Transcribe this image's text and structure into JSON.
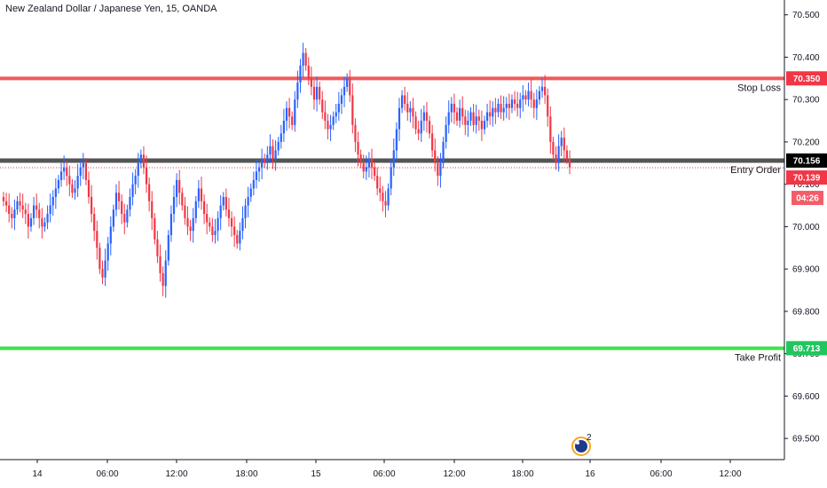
{
  "header": {
    "title": "New Zealand Dollar / Japanese Yen, 15, OANDA"
  },
  "colors": {
    "up": "#2962ff",
    "down": "#f23645",
    "stop": "#f05a5a",
    "target": "#3fe04f",
    "entry": "#555555",
    "current": "#f23645",
    "axis_line": "#131722",
    "badge_stop": "#f23645",
    "badge_entry": "#000000",
    "badge_target": "#22c55e",
    "badge_timer": "#f35d68",
    "event_icon": "#1e3a8a"
  },
  "chart_data": {
    "type": "candlestick",
    "title": "New Zealand Dollar / Japanese Yen, 15, OANDA",
    "yticks": [
      "70.500",
      "70.400",
      "70.300",
      "70.200",
      "70.100",
      "70.000",
      "69.900",
      "69.800",
      "69.700",
      "69.600",
      "69.500"
    ],
    "xticks": [
      "14",
      "06:00",
      "12:00",
      "18:00",
      "15",
      "06:00",
      "12:00",
      "18:00",
      "16",
      "06:00",
      "12:00"
    ],
    "ylim": [
      69.45,
      70.535
    ],
    "levels": [
      {
        "name": "Stop Loss",
        "price": 70.35,
        "badge": "70.350",
        "style": "stop"
      },
      {
        "name": "Entry Order",
        "price": 70.156,
        "badge": "70.156",
        "style": "entry"
      },
      {
        "name": "Take Profit",
        "price": 69.713,
        "badge": "69.713",
        "style": "target"
      }
    ],
    "last_price": {
      "value": 70.139,
      "badge": "70.139",
      "countdown": "04:26"
    },
    "event_marker": {
      "count": "2"
    },
    "series": [
      {
        "close": [
          70.06,
          70.05,
          70.03,
          70.02,
          70.04,
          70.06,
          70.05,
          70.04,
          70.03,
          70.0,
          70.02,
          70.05,
          70.04,
          70.02,
          70.0,
          70.01,
          70.03,
          70.05,
          70.07,
          70.09,
          70.11,
          70.13,
          70.14,
          70.12,
          70.1,
          70.08,
          70.09,
          70.12,
          70.14,
          70.15,
          70.11,
          70.07,
          70.03,
          69.99,
          69.95,
          69.9,
          69.88,
          69.92,
          69.96,
          70.0,
          70.04,
          70.08,
          70.06,
          70.03,
          70.01,
          70.04,
          70.07,
          70.1,
          70.12,
          70.15,
          70.17,
          70.14,
          70.1,
          70.06,
          70.02,
          69.97,
          69.93,
          69.89,
          69.86,
          69.92,
          69.98,
          70.03,
          70.07,
          70.11,
          70.08,
          70.05,
          70.02,
          70.0,
          69.99,
          70.02,
          70.06,
          70.09,
          70.06,
          70.03,
          70.01,
          70.0,
          69.98,
          69.99,
          70.02,
          70.05,
          70.07,
          70.04,
          70.02,
          70.0,
          69.98,
          69.96,
          69.99,
          70.02,
          70.05,
          70.07,
          70.09,
          70.11,
          70.13,
          70.14,
          70.16,
          70.15,
          70.17,
          70.19,
          70.16,
          70.18,
          70.2,
          70.22,
          70.25,
          70.28,
          70.26,
          70.24,
          70.3,
          70.34,
          70.38,
          70.41,
          70.38,
          70.35,
          70.33,
          70.3,
          70.33,
          70.3,
          70.27,
          70.25,
          70.23,
          70.24,
          70.26,
          70.27,
          70.29,
          70.31,
          70.33,
          70.35,
          70.31,
          70.24,
          70.2,
          70.17,
          70.15,
          70.13,
          70.14,
          70.16,
          70.14,
          70.12,
          70.09,
          70.08,
          70.06,
          70.05,
          70.09,
          70.14,
          70.18,
          70.23,
          70.28,
          70.31,
          70.29,
          70.27,
          70.28,
          70.26,
          70.23,
          70.22,
          70.25,
          70.27,
          70.25,
          70.22,
          70.18,
          70.15,
          70.12,
          70.15,
          70.2,
          70.24,
          70.27,
          70.29,
          70.27,
          70.25,
          70.28,
          70.26,
          70.24,
          70.25,
          70.27,
          70.24,
          70.26,
          70.25,
          70.23,
          70.25,
          70.27,
          70.26,
          70.28,
          70.27,
          70.29,
          70.27,
          70.28,
          70.29,
          70.28,
          70.3,
          70.29,
          70.28,
          70.3,
          70.31,
          70.3,
          70.32,
          70.3,
          70.28,
          70.3,
          70.32,
          70.33,
          70.31,
          70.26,
          70.2,
          70.17,
          70.15,
          70.19,
          70.21,
          70.18,
          70.16,
          70.14
        ],
        "open": [
          70.07,
          70.06,
          70.05,
          70.03,
          70.02,
          70.04,
          70.06,
          70.05,
          70.04,
          70.03,
          70.0,
          70.02,
          70.05,
          70.04,
          70.02,
          70.0,
          70.01,
          70.03,
          70.05,
          70.07,
          70.09,
          70.11,
          70.13,
          70.14,
          70.12,
          70.1,
          70.08,
          70.09,
          70.12,
          70.14,
          70.15,
          70.11,
          70.07,
          70.03,
          69.99,
          69.95,
          69.9,
          69.88,
          69.92,
          69.96,
          70.0,
          70.04,
          70.08,
          70.06,
          70.03,
          70.01,
          70.04,
          70.07,
          70.1,
          70.12,
          70.15,
          70.17,
          70.14,
          70.1,
          70.06,
          70.02,
          69.97,
          69.93,
          69.89,
          69.86,
          69.92,
          69.98,
          70.03,
          70.07,
          70.11,
          70.08,
          70.05,
          70.02,
          70.0,
          69.99,
          70.02,
          70.06,
          70.09,
          70.06,
          70.03,
          70.01,
          70.0,
          69.98,
          69.99,
          70.02,
          70.05,
          70.07,
          70.04,
          70.02,
          70.0,
          69.98,
          69.96,
          69.99,
          70.02,
          70.05,
          70.07,
          70.09,
          70.11,
          70.13,
          70.14,
          70.16,
          70.15,
          70.17,
          70.19,
          70.16,
          70.18,
          70.2,
          70.22,
          70.25,
          70.28,
          70.26,
          70.24,
          70.3,
          70.34,
          70.38,
          70.41,
          70.38,
          70.35,
          70.33,
          70.3,
          70.33,
          70.3,
          70.27,
          70.25,
          70.23,
          70.24,
          70.26,
          70.27,
          70.29,
          70.31,
          70.33,
          70.35,
          70.31,
          70.24,
          70.2,
          70.17,
          70.15,
          70.13,
          70.14,
          70.16,
          70.14,
          70.12,
          70.09,
          70.08,
          70.06,
          70.05,
          70.09,
          70.14,
          70.18,
          70.23,
          70.28,
          70.31,
          70.29,
          70.27,
          70.28,
          70.26,
          70.23,
          70.22,
          70.25,
          70.27,
          70.25,
          70.22,
          70.18,
          70.15,
          70.12,
          70.15,
          70.2,
          70.24,
          70.27,
          70.29,
          70.27,
          70.25,
          70.28,
          70.26,
          70.24,
          70.25,
          70.27,
          70.24,
          70.26,
          70.25,
          70.23,
          70.25,
          70.27,
          70.26,
          70.28,
          70.27,
          70.29,
          70.27,
          70.28,
          70.29,
          70.28,
          70.3,
          70.29,
          70.28,
          70.3,
          70.31,
          70.3,
          70.32,
          70.3,
          70.28,
          70.3,
          70.32,
          70.33,
          70.31,
          70.26,
          70.2,
          70.17,
          70.15,
          70.19,
          70.21,
          70.18,
          70.16
        ]
      }
    ],
    "x_start_label_note": "",
    "x_range": {
      "first_tick": "14",
      "last_tick": "12:00"
    }
  }
}
